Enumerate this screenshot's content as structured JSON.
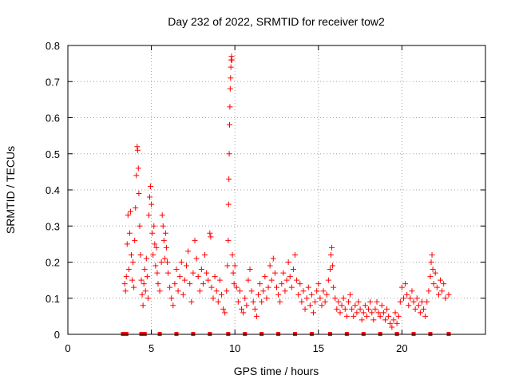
{
  "chart_data": {
    "type": "scatter",
    "title": "Day 232 of 2022, SRMTID for receiver tow2",
    "xlabel": "GPS time / hours",
    "ylabel": "SRMTID / TECUs",
    "xlim": [
      0,
      25
    ],
    "ylim": [
      0,
      0.8
    ],
    "xticks": [
      0,
      5,
      10,
      15,
      20
    ],
    "yticks": [
      0,
      0.1,
      0.2,
      0.3,
      0.4,
      0.5,
      0.6,
      0.7,
      0.8
    ],
    "xtick_labels": [
      "0",
      "5",
      "10",
      "15",
      "20"
    ],
    "ytick_labels": [
      "0",
      "0.1",
      "0.2",
      "0.3",
      "0.4",
      "0.5",
      "0.6",
      "0.7",
      "0.8"
    ],
    "grid": true,
    "marker": "plus",
    "color": "#ff0000",
    "series": [
      {
        "name": "SRMTID",
        "points": [
          [
            3.4,
            0.14
          ],
          [
            3.45,
            0.12
          ],
          [
            3.5,
            0.16
          ],
          [
            3.55,
            0.25
          ],
          [
            3.6,
            0.33
          ],
          [
            3.65,
            0.18
          ],
          [
            3.7,
            0.28
          ],
          [
            3.75,
            0.34
          ],
          [
            3.8,
            0.22
          ],
          [
            3.85,
            0.15
          ],
          [
            3.9,
            0.2
          ],
          [
            3.95,
            0.13
          ],
          [
            4.0,
            0.26
          ],
          [
            4.05,
            0.35
          ],
          [
            4.1,
            0.44
          ],
          [
            4.15,
            0.52
          ],
          [
            4.18,
            0.51
          ],
          [
            4.22,
            0.46
          ],
          [
            4.25,
            0.39
          ],
          [
            4.3,
            0.3
          ],
          [
            4.35,
            0.22
          ],
          [
            4.4,
            0.15
          ],
          [
            4.45,
            0.11
          ],
          [
            4.5,
            0.08
          ],
          [
            4.55,
            0.14
          ],
          [
            4.6,
            0.18
          ],
          [
            4.65,
            0.12
          ],
          [
            4.7,
            0.21
          ],
          [
            4.75,
            0.16
          ],
          [
            4.8,
            0.1
          ],
          [
            4.85,
            0.33
          ],
          [
            4.9,
            0.38
          ],
          [
            4.95,
            0.41
          ],
          [
            5.0,
            0.36
          ],
          [
            5.05,
            0.28
          ],
          [
            5.1,
            0.22
          ],
          [
            5.15,
            0.3
          ],
          [
            5.2,
            0.25
          ],
          [
            5.25,
            0.19
          ],
          [
            5.3,
            0.24
          ],
          [
            5.35,
            0.17
          ],
          [
            5.4,
            0.14
          ],
          [
            5.5,
            0.12
          ],
          [
            5.6,
            0.2
          ],
          [
            5.65,
            0.33
          ],
          [
            5.7,
            0.3
          ],
          [
            5.75,
            0.26
          ],
          [
            5.8,
            0.21
          ],
          [
            5.85,
            0.28
          ],
          [
            5.9,
            0.24
          ],
          [
            5.95,
            0.2
          ],
          [
            6.0,
            0.17
          ],
          [
            6.1,
            0.13
          ],
          [
            6.2,
            0.1
          ],
          [
            6.3,
            0.08
          ],
          [
            6.4,
            0.14
          ],
          [
            6.5,
            0.18
          ],
          [
            6.6,
            0.12
          ],
          [
            6.7,
            0.16
          ],
          [
            6.8,
            0.2
          ],
          [
            6.9,
            0.11
          ],
          [
            7.0,
            0.15
          ],
          [
            7.1,
            0.19
          ],
          [
            7.2,
            0.23
          ],
          [
            7.3,
            0.14
          ],
          [
            7.4,
            0.09
          ],
          [
            7.5,
            0.17
          ],
          [
            7.6,
            0.26
          ],
          [
            7.7,
            0.21
          ],
          [
            7.8,
            0.16
          ],
          [
            7.9,
            0.12
          ],
          [
            8.0,
            0.18
          ],
          [
            8.1,
            0.14
          ],
          [
            8.2,
            0.22
          ],
          [
            8.3,
            0.17
          ],
          [
            8.4,
            0.15
          ],
          [
            8.5,
            0.28
          ],
          [
            8.55,
            0.27
          ],
          [
            8.6,
            0.13
          ],
          [
            8.7,
            0.1
          ],
          [
            8.8,
            0.16
          ],
          [
            8.9,
            0.12
          ],
          [
            9.0,
            0.09
          ],
          [
            9.1,
            0.15
          ],
          [
            9.2,
            0.11
          ],
          [
            9.3,
            0.07
          ],
          [
            9.4,
            0.06
          ],
          [
            9.5,
            0.12
          ],
          [
            9.55,
            0.19
          ],
          [
            9.6,
            0.26
          ],
          [
            9.62,
            0.36
          ],
          [
            9.64,
            0.43
          ],
          [
            9.66,
            0.5
          ],
          [
            9.68,
            0.58
          ],
          [
            9.7,
            0.63
          ],
          [
            9.72,
            0.68
          ],
          [
            9.74,
            0.71
          ],
          [
            9.76,
            0.74
          ],
          [
            9.78,
            0.76
          ],
          [
            9.8,
            0.77
          ],
          [
            9.82,
            0.76
          ],
          [
            9.85,
            0.22
          ],
          [
            9.9,
            0.17
          ],
          [
            9.95,
            0.14
          ],
          [
            10.0,
            0.19
          ],
          [
            10.1,
            0.13
          ],
          [
            10.2,
            0.09
          ],
          [
            10.3,
            0.12
          ],
          [
            10.4,
            0.07
          ],
          [
            10.5,
            0.06
          ],
          [
            10.6,
            0.1
          ],
          [
            10.7,
            0.08
          ],
          [
            10.8,
            0.15
          ],
          [
            10.9,
            0.18
          ],
          [
            11.0,
            0.12
          ],
          [
            11.1,
            0.09
          ],
          [
            11.2,
            0.07
          ],
          [
            11.3,
            0.05
          ],
          [
            11.4,
            0.11
          ],
          [
            11.5,
            0.14
          ],
          [
            11.6,
            0.09
          ],
          [
            11.7,
            0.12
          ],
          [
            11.8,
            0.16
          ],
          [
            11.9,
            0.1
          ],
          [
            12.0,
            0.13
          ],
          [
            12.1,
            0.19
          ],
          [
            12.2,
            0.15
          ],
          [
            12.3,
            0.21
          ],
          [
            12.4,
            0.17
          ],
          [
            12.5,
            0.13
          ],
          [
            12.6,
            0.11
          ],
          [
            12.7,
            0.09
          ],
          [
            12.8,
            0.14
          ],
          [
            12.9,
            0.17
          ],
          [
            13.0,
            0.12
          ],
          [
            13.1,
            0.15
          ],
          [
            13.2,
            0.2
          ],
          [
            13.3,
            0.16
          ],
          [
            13.4,
            0.13
          ],
          [
            13.5,
            0.18
          ],
          [
            13.6,
            0.22
          ],
          [
            13.7,
            0.15
          ],
          [
            13.8,
            0.11
          ],
          [
            13.9,
            0.14
          ],
          [
            14.0,
            0.09
          ],
          [
            14.1,
            0.12
          ],
          [
            14.2,
            0.07
          ],
          [
            14.3,
            0.1
          ],
          [
            14.4,
            0.13
          ],
          [
            14.5,
            0.08
          ],
          [
            14.6,
            0.11
          ],
          [
            14.7,
            0.06
          ],
          [
            14.8,
            0.09
          ],
          [
            14.9,
            0.12
          ],
          [
            15.0,
            0.14
          ],
          [
            15.1,
            0.1
          ],
          [
            15.2,
            0.08
          ],
          [
            15.3,
            0.12
          ],
          [
            15.4,
            0.09
          ],
          [
            15.5,
            0.11
          ],
          [
            15.6,
            0.15
          ],
          [
            15.7,
            0.18
          ],
          [
            15.75,
            0.22
          ],
          [
            15.8,
            0.24
          ],
          [
            15.85,
            0.19
          ],
          [
            15.9,
            0.13
          ],
          [
            16.0,
            0.1
          ],
          [
            16.1,
            0.07
          ],
          [
            16.2,
            0.09
          ],
          [
            16.3,
            0.06
          ],
          [
            16.4,
            0.08
          ],
          [
            16.5,
            0.1
          ],
          [
            16.6,
            0.07
          ],
          [
            16.7,
            0.05
          ],
          [
            16.8,
            0.09
          ],
          [
            16.9,
            0.11
          ],
          [
            17.0,
            0.07
          ],
          [
            17.1,
            0.05
          ],
          [
            17.2,
            0.08
          ],
          [
            17.3,
            0.06
          ],
          [
            17.4,
            0.09
          ],
          [
            17.5,
            0.07
          ],
          [
            17.6,
            0.04
          ],
          [
            17.7,
            0.06
          ],
          [
            17.8,
            0.08
          ],
          [
            17.9,
            0.05
          ],
          [
            18.0,
            0.07
          ],
          [
            18.1,
            0.09
          ],
          [
            18.2,
            0.06
          ],
          [
            18.3,
            0.04
          ],
          [
            18.4,
            0.07
          ],
          [
            18.5,
            0.09
          ],
          [
            18.6,
            0.06
          ],
          [
            18.7,
            0.05
          ],
          [
            18.8,
            0.08
          ],
          [
            18.9,
            0.06
          ],
          [
            19.0,
            0.04
          ],
          [
            19.1,
            0.07
          ],
          [
            19.2,
            0.05
          ],
          [
            19.3,
            0.03
          ],
          [
            19.4,
            0.02
          ],
          [
            19.5,
            0.04
          ],
          [
            19.6,
            0.06
          ],
          [
            19.7,
            0.03
          ],
          [
            19.8,
            0.05
          ],
          [
            19.9,
            0.09
          ],
          [
            20.0,
            0.13
          ],
          [
            20.1,
            0.1
          ],
          [
            20.2,
            0.14
          ],
          [
            20.3,
            0.11
          ],
          [
            20.4,
            0.08
          ],
          [
            20.5,
            0.1
          ],
          [
            20.6,
            0.12
          ],
          [
            20.7,
            0.09
          ],
          [
            20.8,
            0.07
          ],
          [
            20.9,
            0.1
          ],
          [
            21.0,
            0.08
          ],
          [
            21.1,
            0.06
          ],
          [
            21.2,
            0.09
          ],
          [
            21.3,
            0.07
          ],
          [
            21.4,
            0.05
          ],
          [
            21.5,
            0.09
          ],
          [
            21.6,
            0.12
          ],
          [
            21.7,
            0.16
          ],
          [
            21.75,
            0.2
          ],
          [
            21.8,
            0.22
          ],
          [
            21.85,
            0.18
          ],
          [
            21.9,
            0.14
          ],
          [
            22.0,
            0.17
          ],
          [
            22.1,
            0.13
          ],
          [
            22.2,
            0.11
          ],
          [
            22.3,
            0.15
          ],
          [
            22.4,
            0.12
          ],
          [
            22.5,
            0.14
          ],
          [
            22.6,
            0.1
          ],
          [
            22.8,
            0.11
          ]
        ]
      }
    ],
    "bottom_markers": [
      3.3,
      3.5,
      4.4,
      4.6,
      5.5,
      6.5,
      7.5,
      8.5,
      9.6,
      10.6,
      11.6,
      12.6,
      13.6,
      14.6,
      15.7,
      16.7,
      17.7,
      18.7,
      19.7,
      20.7,
      21.7,
      22.8
    ]
  }
}
